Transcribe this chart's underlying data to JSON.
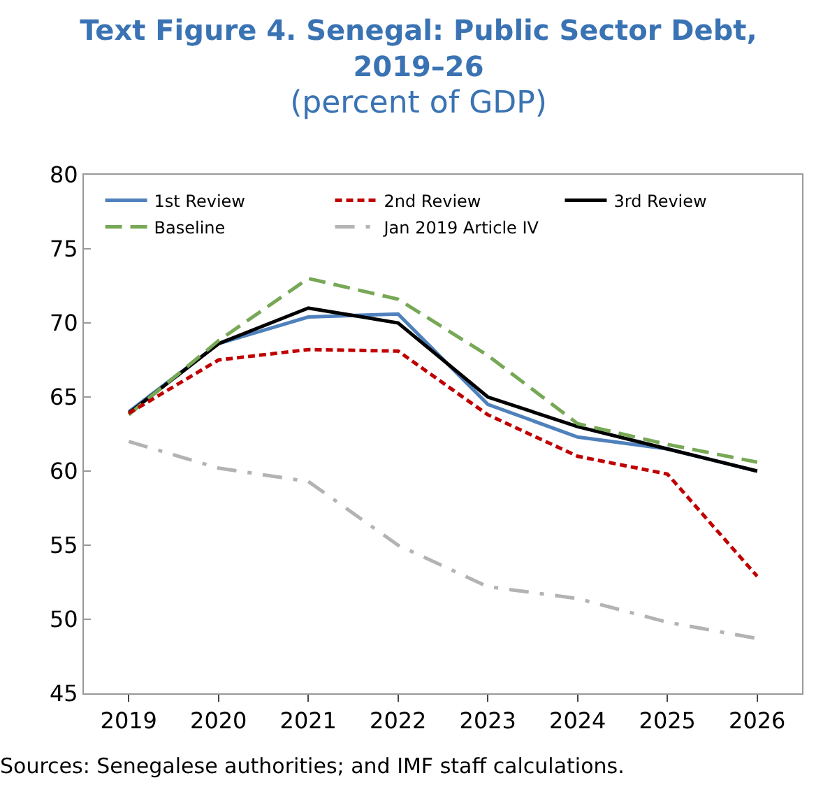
{
  "chart_data": {
    "type": "line",
    "title": "Text Figure 4. Senegal: Public Sector Debt, 2019–26",
    "subtitle": "(percent of GDP)",
    "categories": [
      "2019",
      "2020",
      "2021",
      "2022",
      "2023",
      "2024",
      "2025",
      "2026"
    ],
    "series": [
      {
        "name": "1st Review",
        "color": "#4f81bd",
        "line_style": "solid",
        "values": [
          64.0,
          68.6,
          70.4,
          70.6,
          64.5,
          62.3,
          61.5,
          60.0
        ]
      },
      {
        "name": "2nd Review",
        "color": "#c00000",
        "line_style": "dotted",
        "values": [
          63.9,
          67.5,
          68.2,
          68.1,
          63.8,
          61.0,
          59.8,
          52.9
        ]
      },
      {
        "name": "3rd Review",
        "color": "#000000",
        "line_style": "solid",
        "values": [
          63.9,
          68.6,
          71.0,
          70.0,
          65.0,
          63.0,
          61.5,
          60.0
        ]
      },
      {
        "name": "Baseline",
        "color": "#77a856",
        "line_style": "dashed",
        "values": [
          63.8,
          68.8,
          73.0,
          71.6,
          67.8,
          63.2,
          61.8,
          60.6
        ]
      },
      {
        "name": "Jan 2019 Article IV",
        "color": "#b3b3b3",
        "line_style": "dashdot",
        "values": [
          62.0,
          60.2,
          59.3,
          55.0,
          52.2,
          51.4,
          49.8,
          48.7
        ]
      }
    ],
    "ylim": [
      45,
      80
    ],
    "yticks": [
      45,
      50,
      55,
      60,
      65,
      70,
      75,
      80
    ],
    "legend": "top",
    "marker": "none",
    "annotations": [
      "Sources: Senegalese authorities; and IMF staff calculations."
    ]
  }
}
